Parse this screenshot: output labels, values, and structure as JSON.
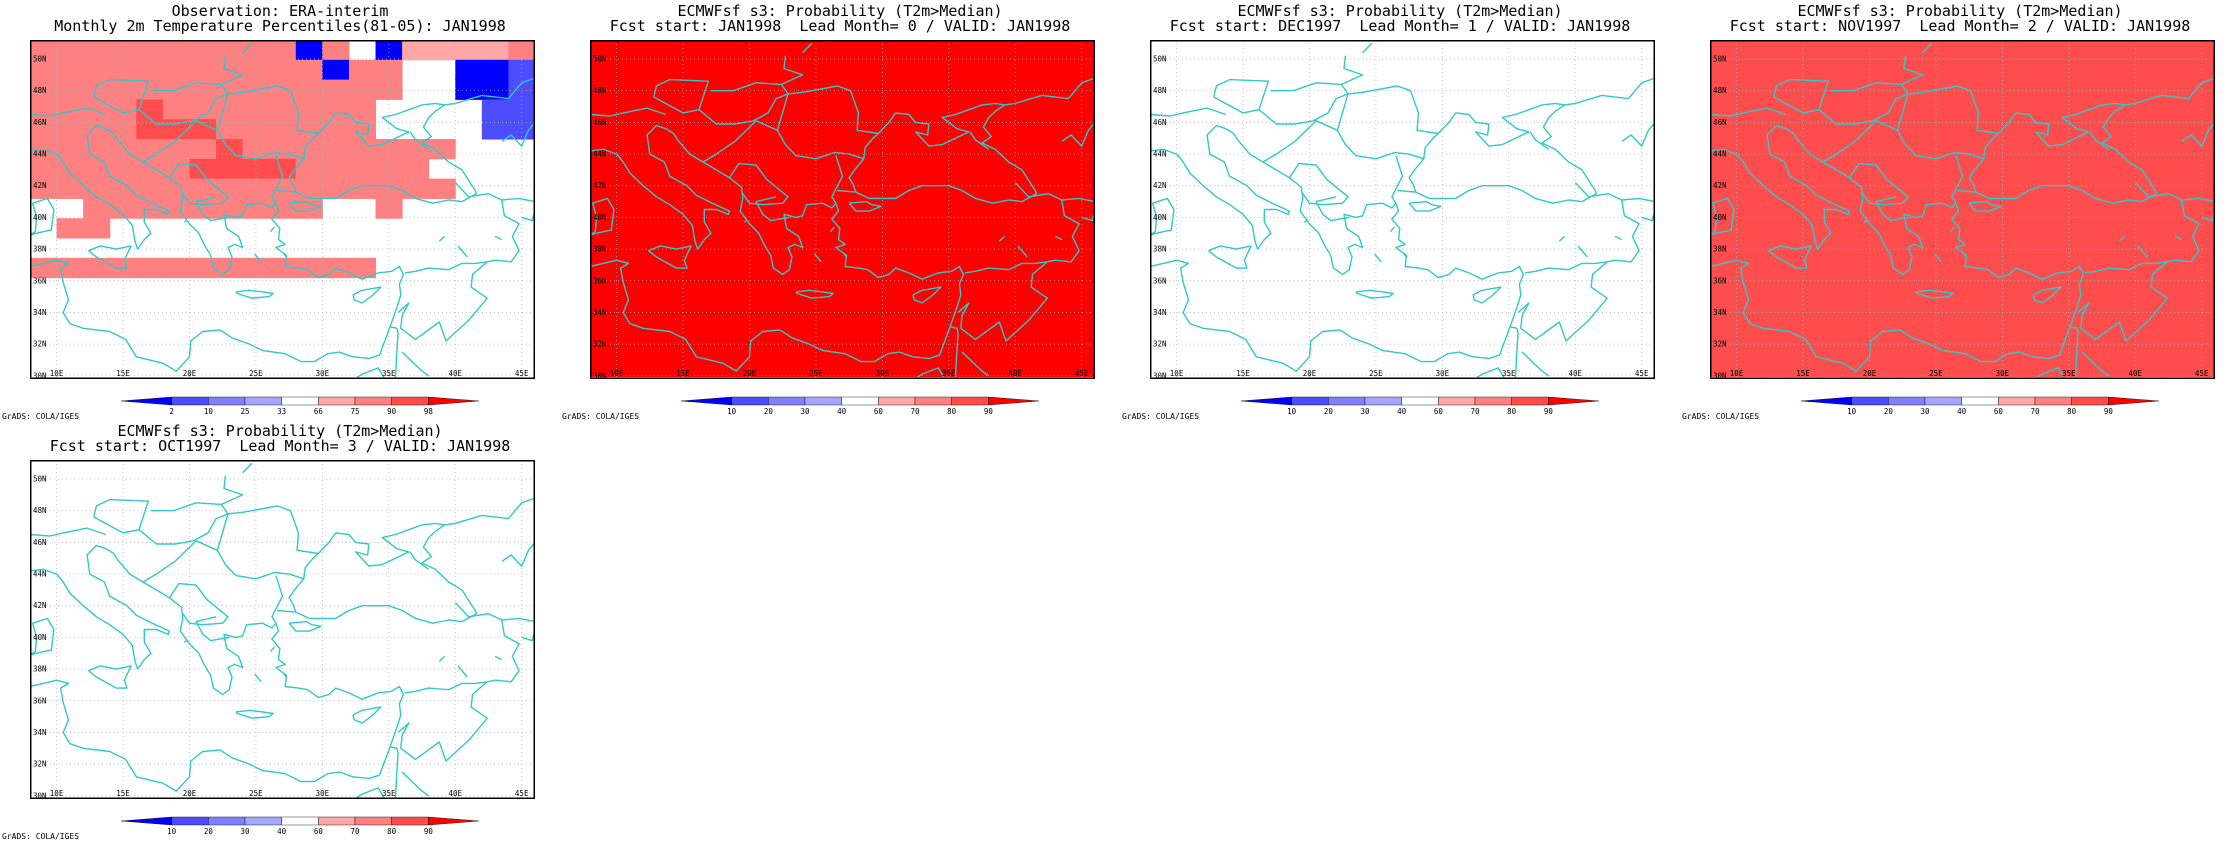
{
  "credit": "GrADS: COLA/IGES",
  "legend_colors": [
    "#0000ff",
    "#4d4dff",
    "#8080ff",
    "#a6a6ff",
    "#ffffff",
    "#ffa6a6",
    "#ff8080",
    "#ff4d4d",
    "#ff0000"
  ],
  "coastline_color": "#31c8c8",
  "map": {
    "lon_ticks": [
      "10E",
      "15E",
      "20E",
      "25E",
      "30E",
      "35E",
      "40E",
      "45E"
    ],
    "lat_ticks": [
      "30N",
      "32N",
      "34N",
      "36N",
      "38N",
      "40N",
      "42N",
      "44N",
      "46N",
      "48N",
      "50N"
    ]
  },
  "panels": [
    {
      "title1": "Observation: ERA-interim",
      "title2": "Monthly 2m Temperature Percentiles(81-05): JAN1998",
      "legend_labels": [
        "2",
        "10",
        "25",
        "33",
        "66",
        "75",
        "90",
        "98"
      ],
      "grid": [
        "6666666666064055556",
        "6666666666606644001",
        "6666666666666644001",
        "6666766666666444411",
        "6666777666666444411",
        "6666666766666666444",
        "6666667777666664444",
        "6666666666666666444",
        "4466666666644644444",
        "4664444444444444444",
        "4444444444444444444",
        "6666666666666444444",
        "4444444444444444444",
        "4444444444444444444",
        "4444444444444444444",
        "4444444444444444444",
        "4444444444444444444"
      ],
      "chart_data": {
        "type": "heatmap",
        "lon_range": [
          8,
          46
        ],
        "lat_range": [
          29.8,
          51.2
        ],
        "legend_categories": [
          "<2",
          "2-10",
          "10-25",
          "25-33",
          "33-66",
          "66-75",
          "75-90",
          "90-98",
          ">98"
        ]
      }
    },
    {
      "title1": "ECMWFsf s3: Probability (T2m>Median)",
      "title2": "Fcst start: JAN1998  Lead Month= 0 / VALID: JAN1998",
      "legend_labels": [
        "10",
        "20",
        "30",
        "40",
        "60",
        "70",
        "80",
        "90"
      ],
      "grid": [
        "8888888888888888888",
        "8888888888888888888",
        "8888888888888888888",
        "8888888888888888888",
        "8888888888888888888",
        "8888888888888888888",
        "8888888888888888888",
        "8888888888888888888",
        "8888888888888888888",
        "8888888888888888888",
        "8888888888888888888",
        "8888888888888888888",
        "8888888888888888888",
        "8888888888888888888",
        "8888888888888888888",
        "8888888888888888888",
        "8888888888888888888"
      ],
      "chart_data": {
        "type": "heatmap",
        "lon_range": [
          8,
          46
        ],
        "lat_range": [
          29.8,
          51.2
        ],
        "legend_categories": [
          "<10",
          "10-20",
          "20-30",
          "30-40",
          "40-60",
          "60-70",
          "70-80",
          "80-90",
          ">90"
        ]
      }
    },
    {
      "title1": "ECMWFsf s3: Probability (T2m>Median)",
      "title2": "Fcst start: DEC1997  Lead Month= 1 / VALID: JAN1998",
      "legend_labels": [
        "10",
        "20",
        "30",
        "40",
        "60",
        "70",
        "80",
        "90"
      ],
      "grid": [
        "4444444444444444444",
        "4444444444444444444",
        "4444444444444444444",
        "4444444444444444444",
        "4444444444444444444",
        "4444444444444444444",
        "4444444444444444444",
        "4444444444444444444",
        "4444444444444444444",
        "4444444444444444444",
        "4444444444444444444",
        "4444444444444444444",
        "4444444444444444444",
        "4444444444444444444",
        "4444444444444444444",
        "4444444444444444444",
        "4444444444444444444"
      ],
      "chart_data": {
        "type": "heatmap",
        "lon_range": [
          8,
          46
        ],
        "lat_range": [
          29.8,
          51.2
        ],
        "legend_categories": [
          "<10",
          "10-20",
          "20-30",
          "30-40",
          "40-60",
          "60-70",
          "70-80",
          "80-90",
          ">90"
        ]
      }
    },
    {
      "title1": "ECMWFsf s3: Probability (T2m>Median)",
      "title2": "Fcst start: NOV1997  Lead Month= 2 / VALID: JAN1998",
      "legend_labels": [
        "10",
        "20",
        "30",
        "40",
        "60",
        "70",
        "80",
        "90"
      ],
      "grid": [
        "7777777777777777777",
        "7777777777777777777",
        "7777777777777777777",
        "7777777777777777777",
        "7777777777777777777",
        "7777777777777777777",
        "7777777777777777777",
        "7777777777777777777",
        "7777777777777777777",
        "7777777777777777777",
        "7777777777777777777",
        "7777777777777777777",
        "7777777777777777777",
        "7777777777777777777",
        "7777777777777777777",
        "7777777777777777777",
        "7777777777777777777"
      ],
      "chart_data": {
        "type": "heatmap",
        "lon_range": [
          8,
          46
        ],
        "lat_range": [
          29.8,
          51.2
        ],
        "legend_categories": [
          "<10",
          "10-20",
          "20-30",
          "30-40",
          "40-60",
          "60-70",
          "70-80",
          "80-90",
          ">90"
        ]
      }
    },
    {
      "title1": "ECMWFsf s3: Probability (T2m>Median)",
      "title2": "Fcst start: OCT1997  Lead Month= 3 / VALID: JAN1998",
      "legend_labels": [
        "10",
        "20",
        "30",
        "40",
        "60",
        "70",
        "80",
        "90"
      ],
      "grid": [
        "4444444444444444444",
        "4444444444444444444",
        "4444444444444444444",
        "4444444444444444444",
        "4444444444444444444",
        "4444444444444444444",
        "4444444444444444444",
        "4444444444444444444",
        "4444444444444444444",
        "4444444444444444444",
        "4444444444444444444",
        "4444444444444444444",
        "4444444444444444444",
        "4444444444444444444",
        "4444444444444444444",
        "4444444444444444444",
        "4444444444444444444"
      ],
      "chart_data": {
        "type": "heatmap",
        "lon_range": [
          8,
          46
        ],
        "lat_range": [
          29.8,
          51.2
        ],
        "legend_categories": [
          "<10",
          "10-20",
          "20-30",
          "30-40",
          "40-60",
          "60-70",
          "70-80",
          "80-90",
          ">90"
        ]
      }
    }
  ]
}
